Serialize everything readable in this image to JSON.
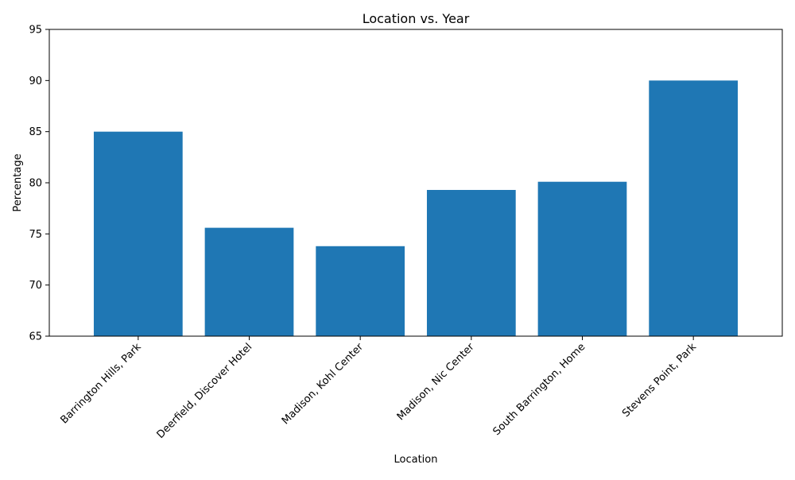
{
  "chart_data": {
    "type": "bar",
    "title": "Location vs. Year",
    "xlabel": "Location",
    "ylabel": "Percentage",
    "categories": [
      "Barrington Hills, Park",
      "Deerfield, Discover Hotel",
      "Madison, Kohl Center",
      "Madison, Nic Center",
      "South Barrington, Home",
      "Stevens Point, Park"
    ],
    "values": [
      85.0,
      75.6,
      73.8,
      79.3,
      80.1,
      90.0
    ],
    "ylim": [
      65,
      95
    ],
    "yticks": [
      "65",
      "70",
      "75",
      "80",
      "85",
      "90",
      "95"
    ],
    "bar_color": "#1f77b4",
    "grid": false,
    "legend": "none"
  }
}
